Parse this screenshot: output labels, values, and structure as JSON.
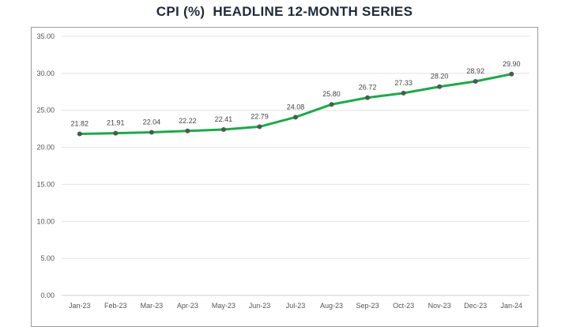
{
  "chart_data": {
    "type": "line",
    "title": "CPI (%)  HEADLINE 12-MONTH SERIES",
    "xlabel": "",
    "ylabel": "",
    "ylim": [
      0,
      35
    ],
    "yticks": [
      "0.00",
      "5.00",
      "10.00",
      "15.00",
      "20.00",
      "25.00",
      "30.00",
      "35.00"
    ],
    "grid": true,
    "legend": "none",
    "categories": [
      "Jan-23",
      "Feb-23",
      "Mar-23",
      "Apr-23",
      "May-23",
      "Jun-23",
      "Jul-23",
      "Aug-23",
      "Sep-23",
      "Oct-23",
      "Nov-23",
      "Dec-23",
      "Jan-24"
    ],
    "series": [
      {
        "name": "CPI (%)",
        "color": "#1fa84a",
        "marker_color": "#4b5a52",
        "values": [
          21.82,
          21.91,
          22.04,
          22.22,
          22.41,
          22.79,
          24.08,
          25.8,
          26.72,
          27.33,
          28.2,
          28.92,
          29.9
        ],
        "labels": [
          "21.82",
          "21.91",
          "22.04",
          "22.22",
          "22.41",
          "22.79",
          "24.08",
          "25.80",
          "26.72",
          "27.33",
          "28.20",
          "28.92",
          "29.90"
        ]
      }
    ]
  }
}
